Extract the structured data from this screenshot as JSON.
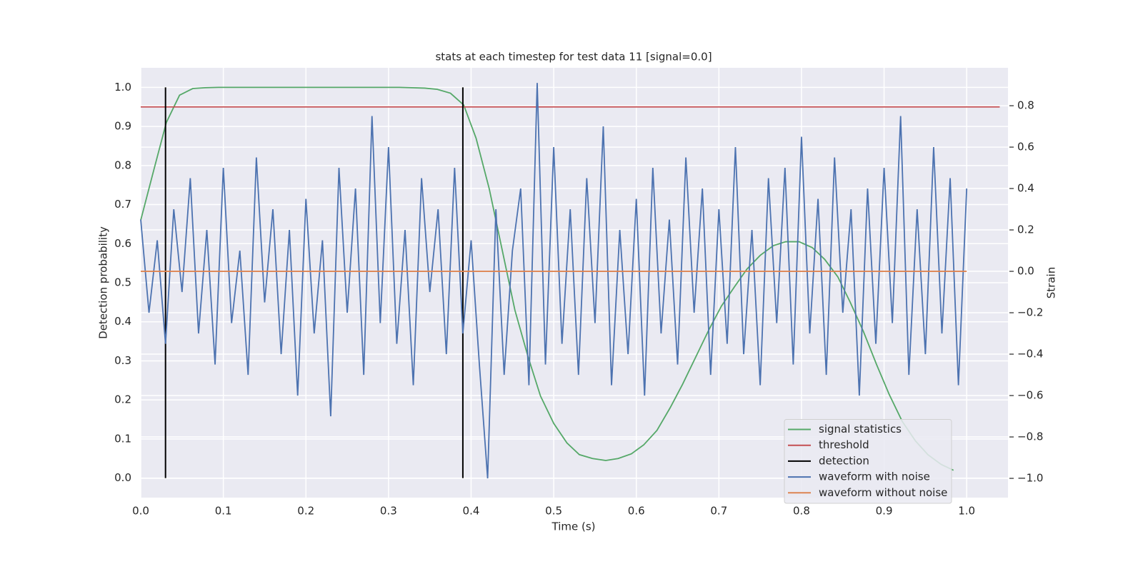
{
  "chart_data": {
    "type": "line",
    "title": "stats at each timestep for test data 11 [signal=0.0]",
    "x_label": "Time (s)",
    "y_label": "Detection probability",
    "y2_label": "Strain",
    "xlim": [
      0,
      1.05
    ],
    "ylim": [
      -0.05,
      1.05
    ],
    "y2lim": [
      -1.093,
      0.983
    ],
    "xticks": [
      {
        "value": 0,
        "label": "0.0"
      },
      0.1,
      0.2,
      0.3,
      0.4,
      0.5,
      0.6,
      0.7,
      0.8,
      0.9,
      {
        "value": 1,
        "label": "1.0"
      }
    ],
    "yticks": [
      {
        "value": 0,
        "label": "0.0"
      },
      0.1,
      0.2,
      0.3,
      0.4,
      0.5,
      0.6,
      0.7,
      0.8,
      0.9,
      {
        "value": 1,
        "label": "1.0"
      }
    ],
    "y2ticks": [
      {
        "value": -1,
        "label": "−1.0"
      },
      {
        "value": -0.8,
        "label": "−0.8"
      },
      {
        "value": -0.6,
        "label": "−0.6"
      },
      {
        "value": -0.4,
        "label": "−0.4"
      },
      {
        "value": -0.2,
        "label": "−0.2"
      },
      {
        "value": 0,
        "label": "0.0"
      },
      0.2,
      0.4,
      0.6,
      0.8
    ],
    "grid": true,
    "legend": "lower right",
    "series": [
      {
        "name": "signal statistics",
        "color": "#55a868",
        "x": [
          0,
          0.016,
          0.031,
          0.047,
          0.063,
          0.078,
          0.094,
          0.109,
          0.125,
          0.141,
          0.156,
          0.172,
          0.188,
          0.203,
          0.219,
          0.234,
          0.25,
          0.266,
          0.281,
          0.297,
          0.313,
          0.328,
          0.344,
          0.359,
          0.375,
          0.391,
          0.406,
          0.422,
          0.438,
          0.453,
          0.469,
          0.484,
          0.5,
          0.516,
          0.531,
          0.547,
          0.563,
          0.578,
          0.594,
          0.609,
          0.625,
          0.641,
          0.656,
          0.672,
          0.688,
          0.703,
          0.719,
          0.734,
          0.75,
          0.766,
          0.781,
          0.797,
          0.813,
          0.828,
          0.844,
          0.859,
          0.875,
          0.891,
          0.906,
          0.922,
          0.938,
          0.953,
          0.969,
          0.984
        ],
        "values": [
          0.66,
          0.79,
          0.91,
          0.98,
          0.997,
          0.999,
          1,
          1,
          1,
          1,
          1,
          1,
          1,
          1,
          1,
          1,
          1,
          1,
          1,
          1,
          1,
          0.999,
          0.998,
          0.995,
          0.985,
          0.955,
          0.87,
          0.74,
          0.58,
          0.43,
          0.31,
          0.21,
          0.14,
          0.09,
          0.06,
          0.05,
          0.045,
          0.05,
          0.062,
          0.085,
          0.122,
          0.18,
          0.24,
          0.31,
          0.38,
          0.44,
          0.49,
          0.535,
          0.57,
          0.595,
          0.605,
          0.605,
          0.59,
          0.56,
          0.515,
          0.45,
          0.375,
          0.29,
          0.215,
          0.145,
          0.095,
          0.06,
          0.035,
          0.02
        ]
      },
      {
        "name": "threshold",
        "color": "#c44e52",
        "x": [
          0,
          1.04
        ],
        "values": [
          0.95,
          0.95
        ]
      },
      {
        "name": "detection",
        "color": "#000000",
        "x": [
          0.03,
          0.39
        ],
        "ymin": 0,
        "ymax": 1
      },
      {
        "name": "waveform with noise",
        "color": "#4c72b0",
        "axis": "y2",
        "x": [
          0,
          0.01,
          0.02,
          0.03,
          0.04,
          0.05,
          0.06,
          0.07,
          0.08,
          0.09,
          0.1,
          0.11,
          0.12,
          0.13,
          0.14,
          0.15,
          0.16,
          0.17,
          0.18,
          0.19,
          0.2,
          0.21,
          0.22,
          0.23,
          0.24,
          0.25,
          0.26,
          0.27,
          0.28,
          0.29,
          0.3,
          0.31,
          0.32,
          0.33,
          0.34,
          0.35,
          0.36,
          0.37,
          0.38,
          0.39,
          0.4,
          0.41,
          0.42,
          0.43,
          0.44,
          0.45,
          0.46,
          0.47,
          0.48,
          0.49,
          0.5,
          0.51,
          0.52,
          0.53,
          0.54,
          0.55,
          0.56,
          0.57,
          0.58,
          0.59,
          0.6,
          0.61,
          0.62,
          0.63,
          0.64,
          0.65,
          0.66,
          0.67,
          0.68,
          0.69,
          0.7,
          0.71,
          0.72,
          0.73,
          0.74,
          0.75,
          0.76,
          0.77,
          0.78,
          0.79,
          0.8,
          0.81,
          0.82,
          0.83,
          0.84,
          0.85,
          0.86,
          0.87,
          0.88,
          0.89,
          0.9,
          0.91,
          0.92,
          0.93,
          0.94,
          0.95,
          0.96,
          0.97,
          0.98,
          0.99,
          1
        ],
        "values": [
          0.25,
          -0.2,
          0.15,
          -0.35,
          0.3,
          -0.1,
          0.45,
          -0.3,
          0.2,
          -0.45,
          0.5,
          -0.25,
          0.1,
          -0.5,
          0.55,
          -0.15,
          0.3,
          -0.4,
          0.2,
          -0.6,
          0.35,
          -0.3,
          0.15,
          -0.7,
          0.5,
          -0.2,
          0.4,
          -0.5,
          0.75,
          -0.25,
          0.6,
          -0.35,
          0.2,
          -0.55,
          0.45,
          -0.1,
          0.3,
          -0.4,
          0.5,
          -0.3,
          0.15,
          -0.45,
          -1.0,
          0.3,
          -0.5,
          0.1,
          0.4,
          -0.55,
          0.91,
          -0.45,
          0.6,
          -0.35,
          0.3,
          -0.5,
          0.45,
          -0.25,
          0.7,
          -0.55,
          0.2,
          -0.4,
          0.35,
          -0.6,
          0.5,
          -0.3,
          0.25,
          -0.45,
          0.55,
          -0.2,
          0.4,
          -0.5,
          0.3,
          -0.35,
          0.6,
          -0.4,
          0.2,
          -0.55,
          0.45,
          -0.25,
          0.5,
          -0.45,
          0.65,
          -0.3,
          0.35,
          -0.5,
          0.55,
          -0.2,
          0.3,
          -0.6,
          0.4,
          -0.35,
          0.5,
          -0.25,
          0.75,
          -0.5,
          0.3,
          -0.4,
          0.6,
          -0.3,
          0.45,
          -0.55,
          0.4
        ]
      },
      {
        "name": "waveform without noise",
        "color": "#dd8452",
        "axis": "y2",
        "x": [
          0,
          1
        ],
        "values": [
          0,
          0
        ]
      }
    ]
  }
}
